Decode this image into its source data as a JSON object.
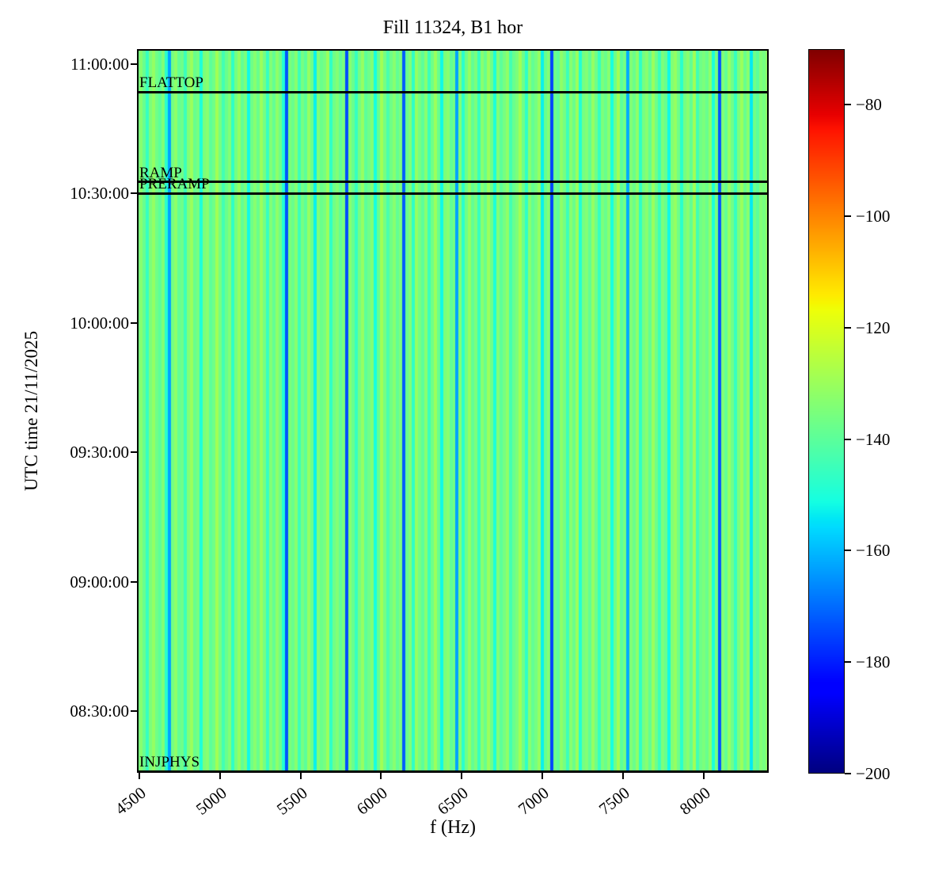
{
  "chart_data": {
    "type": "heatmap",
    "title": "Fill 11324, B1 hor",
    "xlabel": "f (Hz)",
    "ylabel": "UTC time 21/11/2025",
    "colormap": "jet",
    "grid": false,
    "xlim": [
      4485,
      8405
    ],
    "x_ticks": [
      4500,
      5000,
      5500,
      6000,
      6500,
      7000,
      7500,
      8000
    ],
    "ylim_time": [
      "08:15:40",
      "11:03:30"
    ],
    "y_ticks": [
      "11:00:00",
      "10:30:00",
      "10:00:00",
      "09:30:00",
      "09:00:00",
      "08:30:00"
    ],
    "colorbar": {
      "vmin": -200,
      "vmax": -70,
      "ticks": [
        -80,
        -100,
        -120,
        -140,
        -160,
        -180,
        -200
      ]
    },
    "beam_modes": [
      {
        "label": "FLATTOP",
        "time": "10:53:30"
      },
      {
        "label": "RAMP",
        "time": "10:32:40"
      },
      {
        "label": "PRERAMP",
        "time": "10:30:00"
      },
      {
        "label": "INJPHYS",
        "time": "08:16:00"
      }
    ],
    "columns_db": [
      -137,
      -133,
      -138,
      -146,
      -135,
      -131,
      -137,
      -140,
      -134,
      -148,
      -163,
      -136,
      -132,
      -139,
      -137,
      -145,
      -134,
      -130,
      -138,
      -136,
      -150,
      -135,
      -133,
      -140,
      -137,
      -129,
      -136,
      -144,
      -138,
      -134,
      -147,
      -136,
      -131,
      -139,
      -135,
      -152,
      -137,
      -133,
      -138,
      -130,
      -136,
      -146,
      -134,
      -139,
      -132,
      -137,
      -149,
      -173,
      -135,
      -138,
      -133,
      -145,
      -136,
      -140,
      -131,
      -137,
      -153,
      -134,
      -138,
      -136,
      -130,
      -147,
      -137,
      -134,
      -139,
      -135,
      -174,
      -133,
      -138,
      -146,
      -136,
      -131,
      -140,
      -137,
      -134,
      -151,
      -138,
      -129,
      -136,
      -143,
      -137,
      -133,
      -139,
      -135,
      -172,
      -138,
      -134,
      -147,
      -131,
      -136,
      -140,
      -133,
      -145,
      -137,
      -130,
      -138,
      -152,
      -135,
      -133,
      -139,
      -136,
      -163,
      -134,
      -148,
      -137,
      -131,
      -139,
      -135,
      -146,
      -133,
      -138,
      -130,
      -137,
      -150,
      -134,
      -140,
      -136,
      -132,
      -144,
      -138,
      -135,
      -129,
      -137,
      -147,
      -133,
      -139,
      -136,
      -131,
      -153,
      -138,
      -134,
      -175,
      -137,
      -140,
      -132,
      -136,
      -145,
      -133,
      -138,
      -130,
      -149,
      -136,
      -134,
      -139,
      -131,
      -137,
      -146,
      -135,
      -138,
      -133,
      -151,
      -137,
      -129,
      -140,
      -136,
      -162,
      -134,
      -138,
      -132,
      -147,
      -136,
      -133,
      -139,
      -130,
      -137,
      -145,
      -135,
      -138,
      -152,
      -134,
      -131,
      -137,
      -148,
      -136,
      -133,
      -139,
      -129,
      -144,
      -137,
      -135,
      -138,
      -132,
      -150,
      -136,
      -173,
      -134,
      -139,
      -131,
      -137,
      -146,
      -135,
      -130,
      -138,
      -133,
      -154,
      -137,
      -140,
      -134,
      -136,
      -132
    ]
  }
}
